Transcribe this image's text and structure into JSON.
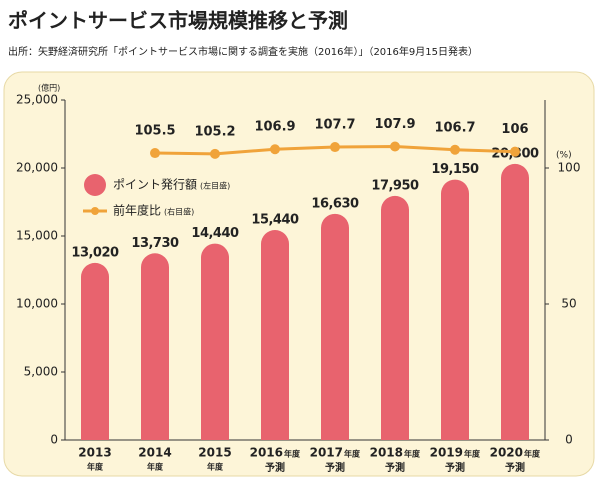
{
  "chart_data": {
    "type": "bar",
    "title": "ポイントサービス市場規模推移と予測",
    "subtitle": "出所：矢野経済研究所「ポイントサービス市場に関する調査を実施（2016年）」（2016年9月15日発表）",
    "y_label": "(億円)",
    "y2_label": "(%)",
    "categories": [
      "2013",
      "2014",
      "2015",
      "2016",
      "2017",
      "2018",
      "2019",
      "2020"
    ],
    "category_suffix": [
      "年度",
      "年度",
      "年度",
      "年度",
      "年度",
      "年度",
      "年度",
      "年度"
    ],
    "category_forecast": [
      null,
      null,
      null,
      "予測",
      "予測",
      "予測",
      "予測",
      "予測"
    ],
    "series": [
      {
        "name": "ポイント発行額",
        "axis_note": "(左目盛)",
        "type": "bar",
        "color": "#e8636e",
        "values": [
          13020,
          13730,
          14440,
          15440,
          16630,
          17950,
          19150,
          20300
        ],
        "value_labels": [
          "13,020",
          "13,730",
          "14,440",
          "15,440",
          "16,630",
          "17,950",
          "19,150",
          "20,300"
        ]
      },
      {
        "name": "前年度比",
        "axis_note": "(右目盛)",
        "type": "line",
        "axis": "y2",
        "color": "#f0a33a",
        "values": [
          null,
          105.5,
          105.2,
          106.9,
          107.7,
          107.9,
          106.7,
          106.0
        ]
      }
    ],
    "ylim": [
      0,
      25000
    ],
    "yticks": [
      0,
      {
        "value": 5000,
        "label": "5,000"
      },
      {
        "value": 10000,
        "label": "10,000"
      },
      {
        "value": 15000,
        "label": "15,000"
      },
      {
        "value": 20000,
        "label": "20,000"
      },
      {
        "value": 25000,
        "label": "25,000"
      }
    ],
    "y2lim": [
      0,
      125
    ],
    "y2ticks": [
      0,
      50,
      100
    ],
    "legend": "upper left"
  }
}
